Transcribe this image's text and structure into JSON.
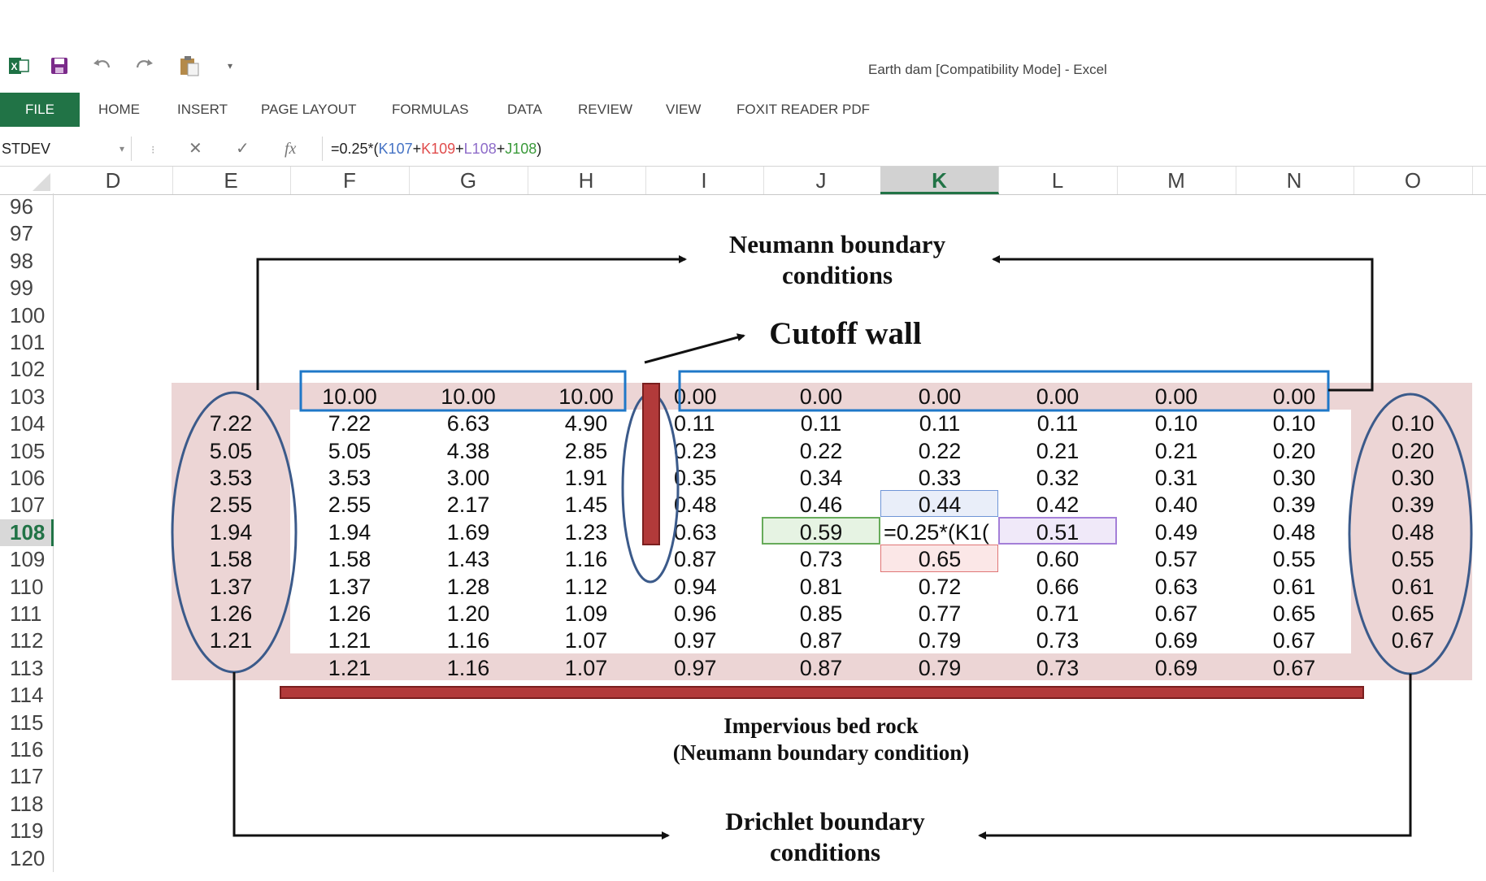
{
  "window": {
    "title": "Earth dam  [Compatibility Mode] - Excel"
  },
  "qat": {
    "icons": [
      "excel-logo-icon",
      "save-icon",
      "undo-icon",
      "redo-icon",
      "paste-icon",
      "customize-qat-icon"
    ]
  },
  "ribbon": {
    "tabs": [
      "FILE",
      "HOME",
      "INSERT",
      "PAGE LAYOUT",
      "FORMULAS",
      "DATA",
      "REVIEW",
      "VIEW",
      "FOXIT READER PDF"
    ]
  },
  "formula_bar": {
    "name_box": "STDEV",
    "cancel": "✕",
    "enter": "✓",
    "fx": "fx",
    "formula_prefix": "=0.25*(",
    "ref1": "K107",
    "plus1": "+",
    "ref2": "K109",
    "plus2": "+",
    "ref3": "L108",
    "plus3": "+",
    "ref4": "J108",
    "formula_suffix": ")"
  },
  "grid": {
    "columns": [
      "D",
      "E",
      "F",
      "G",
      "H",
      "I",
      "J",
      "K",
      "L",
      "M",
      "N",
      "O"
    ],
    "selected_column": "K",
    "rows": [
      "96",
      "97",
      "98",
      "99",
      "100",
      "101",
      "102",
      "103",
      "104",
      "105",
      "106",
      "107",
      "108",
      "109",
      "110",
      "111",
      "112",
      "113",
      "114",
      "115",
      "116",
      "117",
      "118",
      "119",
      "120"
    ],
    "selected_row": "108",
    "data_rows": [
      {
        "row": "103",
        "E": "",
        "F": "10.00",
        "G": "10.00",
        "H": "10.00",
        "I": "0.00",
        "J": "0.00",
        "K": "0.00",
        "L": "0.00",
        "M": "0.00",
        "N": "0.00",
        "O": ""
      },
      {
        "row": "104",
        "E": "7.22",
        "F": "7.22",
        "G": "6.63",
        "H": "4.90",
        "I": "0.11",
        "J": "0.11",
        "K": "0.11",
        "L": "0.11",
        "M": "0.10",
        "N": "0.10",
        "O": "0.10"
      },
      {
        "row": "105",
        "E": "5.05",
        "F": "5.05",
        "G": "4.38",
        "H": "2.85",
        "I": "0.23",
        "J": "0.22",
        "K": "0.22",
        "L": "0.21",
        "M": "0.21",
        "N": "0.20",
        "O": "0.20"
      },
      {
        "row": "106",
        "E": "3.53",
        "F": "3.53",
        "G": "3.00",
        "H": "1.91",
        "I": "0.35",
        "J": "0.34",
        "K": "0.33",
        "L": "0.32",
        "M": "0.31",
        "N": "0.30",
        "O": "0.30"
      },
      {
        "row": "107",
        "E": "2.55",
        "F": "2.55",
        "G": "2.17",
        "H": "1.45",
        "I": "0.48",
        "J": "0.46",
        "K": "0.44",
        "L": "0.42",
        "M": "0.40",
        "N": "0.39",
        "O": "0.39"
      },
      {
        "row": "108",
        "E": "1.94",
        "F": "1.94",
        "G": "1.69",
        "H": "1.23",
        "I": "0.63",
        "J": "0.59",
        "K": "=0.25*(K1(",
        "L": "0.51",
        "M": "0.49",
        "N": "0.48",
        "O": "0.48"
      },
      {
        "row": "109",
        "E": "1.58",
        "F": "1.58",
        "G": "1.43",
        "H": "1.16",
        "I": "0.87",
        "J": "0.73",
        "K": "0.65",
        "L": "0.60",
        "M": "0.57",
        "N": "0.55",
        "O": "0.55"
      },
      {
        "row": "110",
        "E": "1.37",
        "F": "1.37",
        "G": "1.28",
        "H": "1.12",
        "I": "0.94",
        "J": "0.81",
        "K": "0.72",
        "L": "0.66",
        "M": "0.63",
        "N": "0.61",
        "O": "0.61"
      },
      {
        "row": "111",
        "E": "1.26",
        "F": "1.26",
        "G": "1.20",
        "H": "1.09",
        "I": "0.96",
        "J": "0.85",
        "K": "0.77",
        "L": "0.71",
        "M": "0.67",
        "N": "0.65",
        "O": "0.65"
      },
      {
        "row": "112",
        "E": "1.21",
        "F": "1.21",
        "G": "1.16",
        "H": "1.07",
        "I": "0.97",
        "J": "0.87",
        "K": "0.79",
        "L": "0.73",
        "M": "0.69",
        "N": "0.67",
        "O": "0.67"
      },
      {
        "row": "113",
        "E": "",
        "F": "1.21",
        "G": "1.16",
        "H": "1.07",
        "I": "0.97",
        "J": "0.87",
        "K": "0.79",
        "L": "0.73",
        "M": "0.69",
        "N": "0.67",
        "O": ""
      }
    ]
  },
  "annotations": {
    "neumann_line1": "Neumann boundary",
    "neumann_line2": "conditions",
    "cutoff": "Cutoff wall",
    "bedrock_line1": "Impervious bed rock",
    "bedrock_line2": "(Neumann boundary condition)",
    "drichlet_line1": "Drichlet boundary",
    "drichlet_line2": "conditions"
  },
  "colors": {
    "excel_green": "#217346",
    "pink_region": "#ecd5d5",
    "blue_box": "#1f78c8",
    "ellipse": "#3b5a8a",
    "wall_red": "#b23a3a",
    "ref_blue": "#4472C4",
    "ref_red": "#E04C4C",
    "ref_purple": "#8E6CC9",
    "ref_green": "#3A9A3A"
  }
}
